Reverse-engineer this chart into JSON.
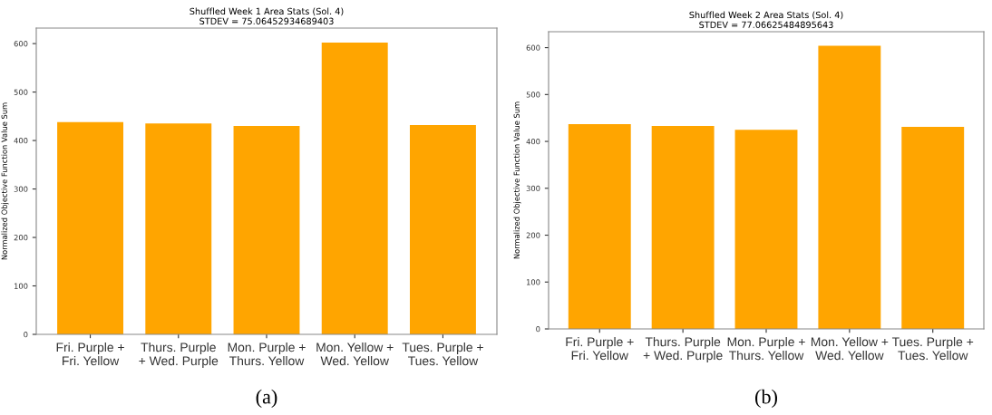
{
  "chart_data": [
    {
      "type": "bar",
      "title": "Shuffled Week 1 Area Stats (Sol. 4)\nSTDEV = 75.06452934689403",
      "ylabel": "Normalized Objective Function Value Sum",
      "categories": [
        "Fri. Purple +\nFri. Yellow",
        "Thurs. Purple\n+ Wed. Purple",
        "Mon. Purple +\nThurs. Yellow",
        "Mon. Yellow +\nWed. Yellow",
        "Tues. Purple +\nTues. Yellow"
      ],
      "values": [
        438,
        435,
        430,
        602,
        432
      ],
      "color": "#ffa500",
      "ylim": [
        0,
        632
      ],
      "yticks": [
        0,
        100,
        200,
        300,
        400,
        500,
        600
      ],
      "grid": false,
      "annotations": [
        "(a)"
      ]
    },
    {
      "type": "bar",
      "title": "Shuffled Week 2 Area Stats (Sol. 4)\nSTDEV = 77.06625484895643",
      "ylabel": "Normalized Objective Function Value Sum",
      "categories": [
        "Fri. Purple +\nFri. Yellow",
        "Thurs. Purple\n+ Wed. Purple",
        "Mon. Purple +\nThurs. Yellow",
        "Mon. Yellow +\nWed. Yellow",
        "Tues. Purple +\nTues. Yellow"
      ],
      "values": [
        437,
        433,
        425,
        604,
        431
      ],
      "color": "#ffa500",
      "ylim": [
        0,
        634
      ],
      "yticks": [
        0,
        100,
        200,
        300,
        400,
        500,
        600
      ],
      "grid": false,
      "annotations": [
        "(b)"
      ]
    }
  ]
}
